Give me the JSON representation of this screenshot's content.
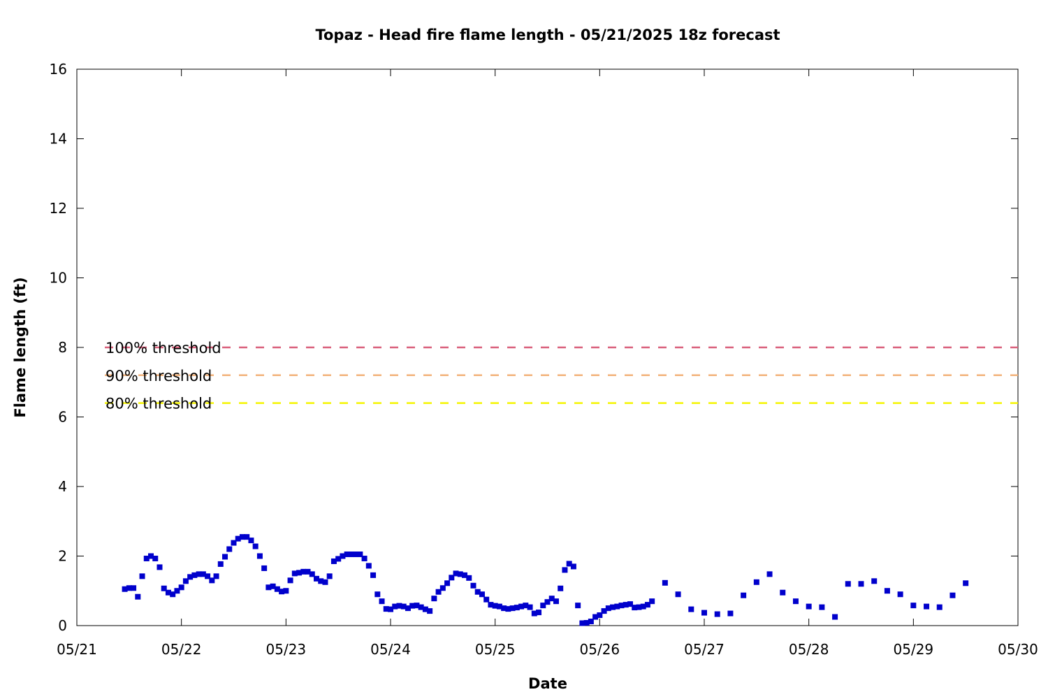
{
  "chart_data": {
    "type": "scatter",
    "title": "Topaz - Head fire flame length - 05/21/2025 18z forecast",
    "xlabel": "Date",
    "ylabel": "Flame length (ft)",
    "xlim": [
      "2025-05-21 00:00",
      "2025-05-30 00:00"
    ],
    "ylim": [
      0,
      16
    ],
    "x_tick_labels": [
      "05/21",
      "05/22",
      "05/23",
      "05/24",
      "05/25",
      "05/26",
      "05/27",
      "05/28",
      "05/29",
      "05/30"
    ],
    "y_tick_labels": [
      "0",
      "2",
      "4",
      "6",
      "8",
      "10",
      "12",
      "14",
      "16"
    ],
    "grid": false,
    "legend_position": "left",
    "thresholds": [
      {
        "name": "100% threshold",
        "value": 8.0,
        "color": "#d95f7a"
      },
      {
        "name": "90% threshold",
        "value": 7.2,
        "color": "#f2b27a"
      },
      {
        "name": "80% threshold",
        "value": 6.4,
        "color": "#f5f500"
      }
    ],
    "series": [
      {
        "marker_color": "#0000cc",
        "points": [
          [
            "2025-05-21 11:00",
            1.05
          ],
          [
            "2025-05-21 12:00",
            1.08
          ],
          [
            "2025-05-21 13:00",
            1.08
          ],
          [
            "2025-05-21 14:00",
            0.83
          ],
          [
            "2025-05-21 15:00",
            1.42
          ],
          [
            "2025-05-21 16:00",
            1.93
          ],
          [
            "2025-05-21 17:00",
            2.0
          ],
          [
            "2025-05-21 18:00",
            1.93
          ],
          [
            "2025-05-21 19:00",
            1.68
          ],
          [
            "2025-05-21 20:00",
            1.07
          ],
          [
            "2025-05-21 21:00",
            0.95
          ],
          [
            "2025-05-21 22:00",
            0.9
          ],
          [
            "2025-05-21 23:00",
            1.0
          ],
          [
            "2025-05-22 00:00",
            1.1
          ],
          [
            "2025-05-22 01:00",
            1.28
          ],
          [
            "2025-05-22 02:00",
            1.4
          ],
          [
            "2025-05-22 03:00",
            1.45
          ],
          [
            "2025-05-22 04:00",
            1.48
          ],
          [
            "2025-05-22 05:00",
            1.48
          ],
          [
            "2025-05-22 06:00",
            1.42
          ],
          [
            "2025-05-22 07:00",
            1.3
          ],
          [
            "2025-05-22 08:00",
            1.42
          ],
          [
            "2025-05-22 09:00",
            1.77
          ],
          [
            "2025-05-22 10:00",
            1.98
          ],
          [
            "2025-05-22 11:00",
            2.2
          ],
          [
            "2025-05-22 12:00",
            2.38
          ],
          [
            "2025-05-22 13:00",
            2.5
          ],
          [
            "2025-05-22 14:00",
            2.55
          ],
          [
            "2025-05-22 15:00",
            2.55
          ],
          [
            "2025-05-22 16:00",
            2.45
          ],
          [
            "2025-05-22 17:00",
            2.28
          ],
          [
            "2025-05-22 18:00",
            2.0
          ],
          [
            "2025-05-22 19:00",
            1.65
          ],
          [
            "2025-05-22 20:00",
            1.1
          ],
          [
            "2025-05-22 21:00",
            1.13
          ],
          [
            "2025-05-22 22:00",
            1.05
          ],
          [
            "2025-05-22 23:00",
            0.98
          ],
          [
            "2025-05-23 00:00",
            1.0
          ],
          [
            "2025-05-23 01:00",
            1.3
          ],
          [
            "2025-05-23 02:00",
            1.5
          ],
          [
            "2025-05-23 03:00",
            1.52
          ],
          [
            "2025-05-23 04:00",
            1.55
          ],
          [
            "2025-05-23 05:00",
            1.55
          ],
          [
            "2025-05-23 06:00",
            1.48
          ],
          [
            "2025-05-23 07:00",
            1.35
          ],
          [
            "2025-05-23 08:00",
            1.28
          ],
          [
            "2025-05-23 09:00",
            1.25
          ],
          [
            "2025-05-23 10:00",
            1.42
          ],
          [
            "2025-05-23 11:00",
            1.85
          ],
          [
            "2025-05-23 12:00",
            1.92
          ],
          [
            "2025-05-23 13:00",
            2.0
          ],
          [
            "2025-05-23 14:00",
            2.05
          ],
          [
            "2025-05-23 15:00",
            2.05
          ],
          [
            "2025-05-23 16:00",
            2.05
          ],
          [
            "2025-05-23 17:00",
            2.05
          ],
          [
            "2025-05-23 18:00",
            1.93
          ],
          [
            "2025-05-23 19:00",
            1.72
          ],
          [
            "2025-05-23 20:00",
            1.45
          ],
          [
            "2025-05-23 21:00",
            0.9
          ],
          [
            "2025-05-23 22:00",
            0.7
          ],
          [
            "2025-05-23 23:00",
            0.48
          ],
          [
            "2025-05-24 00:00",
            0.47
          ],
          [
            "2025-05-24 01:00",
            0.55
          ],
          [
            "2025-05-24 02:00",
            0.57
          ],
          [
            "2025-05-24 03:00",
            0.55
          ],
          [
            "2025-05-24 04:00",
            0.5
          ],
          [
            "2025-05-24 05:00",
            0.57
          ],
          [
            "2025-05-24 06:00",
            0.58
          ],
          [
            "2025-05-24 07:00",
            0.53
          ],
          [
            "2025-05-24 08:00",
            0.47
          ],
          [
            "2025-05-24 09:00",
            0.42
          ],
          [
            "2025-05-24 10:00",
            0.78
          ],
          [
            "2025-05-24 11:00",
            0.97
          ],
          [
            "2025-05-24 12:00",
            1.08
          ],
          [
            "2025-05-24 13:00",
            1.22
          ],
          [
            "2025-05-24 14:00",
            1.38
          ],
          [
            "2025-05-24 15:00",
            1.5
          ],
          [
            "2025-05-24 16:00",
            1.48
          ],
          [
            "2025-05-24 17:00",
            1.45
          ],
          [
            "2025-05-24 18:00",
            1.37
          ],
          [
            "2025-05-24 19:00",
            1.15
          ],
          [
            "2025-05-24 20:00",
            0.97
          ],
          [
            "2025-05-24 21:00",
            0.9
          ],
          [
            "2025-05-24 22:00",
            0.75
          ],
          [
            "2025-05-24 23:00",
            0.6
          ],
          [
            "2025-05-25 00:00",
            0.57
          ],
          [
            "2025-05-25 01:00",
            0.55
          ],
          [
            "2025-05-25 02:00",
            0.5
          ],
          [
            "2025-05-25 03:00",
            0.48
          ],
          [
            "2025-05-25 04:00",
            0.5
          ],
          [
            "2025-05-25 05:00",
            0.52
          ],
          [
            "2025-05-25 06:00",
            0.55
          ],
          [
            "2025-05-25 07:00",
            0.58
          ],
          [
            "2025-05-25 08:00",
            0.53
          ],
          [
            "2025-05-25 09:00",
            0.35
          ],
          [
            "2025-05-25 10:00",
            0.38
          ],
          [
            "2025-05-25 11:00",
            0.58
          ],
          [
            "2025-05-25 12:00",
            0.68
          ],
          [
            "2025-05-25 13:00",
            0.78
          ],
          [
            "2025-05-25 14:00",
            0.7
          ],
          [
            "2025-05-25 15:00",
            1.07
          ],
          [
            "2025-05-25 16:00",
            1.6
          ],
          [
            "2025-05-25 17:00",
            1.78
          ],
          [
            "2025-05-25 18:00",
            1.7
          ],
          [
            "2025-05-25 19:00",
            0.58
          ],
          [
            "2025-05-25 20:00",
            0.07
          ],
          [
            "2025-05-25 21:00",
            0.08
          ],
          [
            "2025-05-25 22:00",
            0.12
          ],
          [
            "2025-05-25 23:00",
            0.25
          ],
          [
            "2025-05-26 00:00",
            0.3
          ],
          [
            "2025-05-26 01:00",
            0.42
          ],
          [
            "2025-05-26 02:00",
            0.5
          ],
          [
            "2025-05-26 03:00",
            0.53
          ],
          [
            "2025-05-26 04:00",
            0.55
          ],
          [
            "2025-05-26 05:00",
            0.58
          ],
          [
            "2025-05-26 06:00",
            0.6
          ],
          [
            "2025-05-26 07:00",
            0.62
          ],
          [
            "2025-05-26 08:00",
            0.52
          ],
          [
            "2025-05-26 09:00",
            0.53
          ],
          [
            "2025-05-26 10:00",
            0.55
          ],
          [
            "2025-05-26 11:00",
            0.6
          ],
          [
            "2025-05-26 12:00",
            0.7
          ],
          [
            "2025-05-26 15:00",
            1.23
          ],
          [
            "2025-05-26 18:00",
            0.9
          ],
          [
            "2025-05-26 21:00",
            0.47
          ],
          [
            "2025-05-27 00:00",
            0.37
          ],
          [
            "2025-05-27 03:00",
            0.33
          ],
          [
            "2025-05-27 06:00",
            0.35
          ],
          [
            "2025-05-27 09:00",
            0.87
          ],
          [
            "2025-05-27 12:00",
            1.25
          ],
          [
            "2025-05-27 15:00",
            1.48
          ],
          [
            "2025-05-27 18:00",
            0.95
          ],
          [
            "2025-05-27 21:00",
            0.7
          ],
          [
            "2025-05-28 00:00",
            0.55
          ],
          [
            "2025-05-28 03:00",
            0.53
          ],
          [
            "2025-05-28 06:00",
            0.25
          ],
          [
            "2025-05-28 09:00",
            1.2
          ],
          [
            "2025-05-28 12:00",
            1.2
          ],
          [
            "2025-05-28 15:00",
            1.28
          ],
          [
            "2025-05-28 18:00",
            1.0
          ],
          [
            "2025-05-28 21:00",
            0.9
          ],
          [
            "2025-05-29 00:00",
            0.58
          ],
          [
            "2025-05-29 03:00",
            0.55
          ],
          [
            "2025-05-29 06:00",
            0.53
          ],
          [
            "2025-05-29 09:00",
            0.87
          ],
          [
            "2025-05-29 12:00",
            1.22
          ]
        ]
      }
    ]
  }
}
